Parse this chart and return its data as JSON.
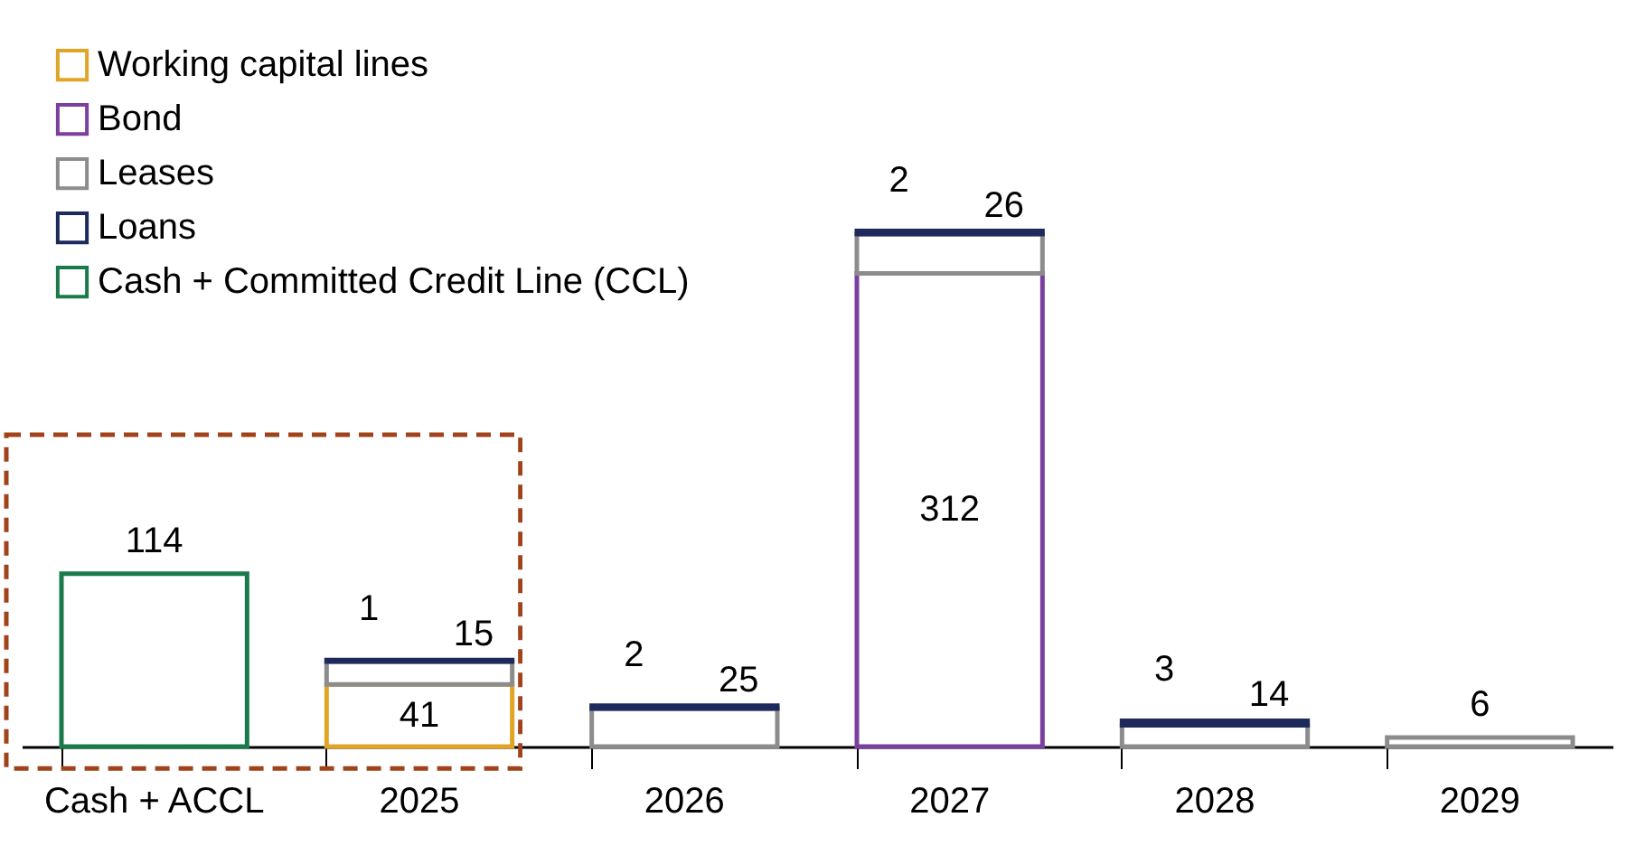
{
  "chart_data": {
    "type": "bar",
    "stacked": true,
    "data_labels": true,
    "legend": "top left",
    "grid": false,
    "categories": [
      "Cash + ACCL",
      "2025",
      "2026",
      "2027",
      "2028",
      "2029"
    ],
    "series": [
      {
        "name": "Working capital lines",
        "color": "#e0a526",
        "values": [
          null,
          41,
          null,
          null,
          null,
          null
        ]
      },
      {
        "name": "Bond",
        "color": "#7b3fa0",
        "values": [
          null,
          null,
          null,
          312,
          null,
          null
        ]
      },
      {
        "name": "Leases",
        "color": "#8c8c8c",
        "values": [
          null,
          15,
          25,
          26,
          14,
          6
        ]
      },
      {
        "name": "Loans",
        "color": "#1f2a5c",
        "values": [
          null,
          1,
          2,
          2,
          3,
          null
        ]
      },
      {
        "name": "Cash + Committed Credit Line (CCL)",
        "color": "#1a7a4c",
        "values": [
          114,
          null,
          null,
          null,
          null,
          null
        ]
      }
    ]
  }
}
